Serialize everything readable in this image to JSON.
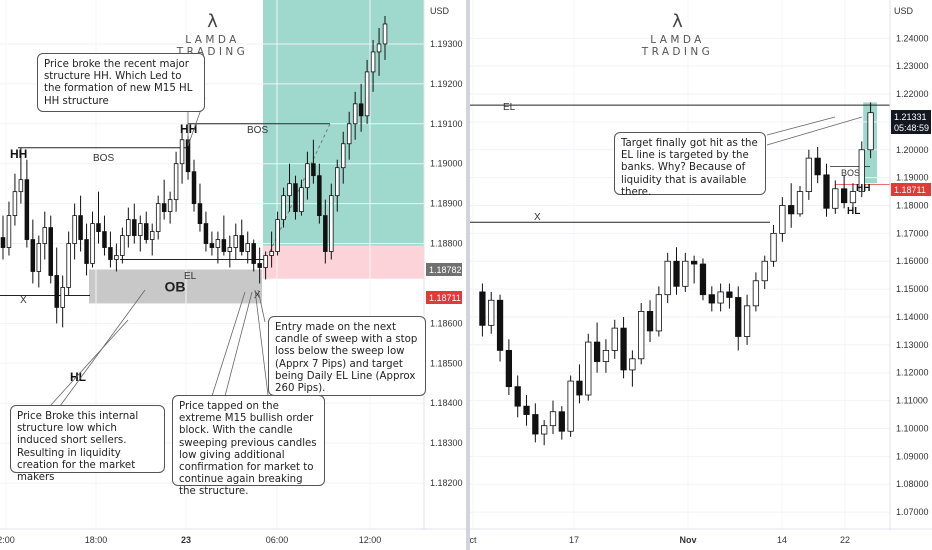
{
  "left_panel": {
    "brand": {
      "symbol": "λ",
      "name": "LAMDA TRADING"
    },
    "currency": "USD",
    "price_ticks": [
      "1.19300",
      "1.19200",
      "1.19100",
      "1.19000",
      "1.18900",
      "1.18800",
      "1.18600",
      "1.18500",
      "1.18400",
      "1.18300",
      "1.18200"
    ],
    "time_ticks": [
      "2:00",
      "18:00",
      "23",
      "06:00",
      "12:00"
    ],
    "current_price_badge": "1.18782",
    "stop_price_badge": "1.18711",
    "labels": {
      "hh_left": "HH",
      "hh_mid": "HH",
      "bos_left": "BOS",
      "bos_mid": "BOS",
      "el": "EL",
      "ob": "OB",
      "hl": "HL",
      "x_left": "X",
      "x_sweep": "X"
    },
    "notes": {
      "structure_break": "Price broke the recent major structure HH. Which Led to the formation of new M15 HL HH structure",
      "entry": "Entry made on the next candle of sweep with a stop loss below the sweep low (Apprx 7 Pips) and target being Daily EL Line (Approx 260 Pips).",
      "internal_low": "Price Broke this internal structure low which induced short sellers. Resulting in liquidity creation for the market makers",
      "order_block": "Price tapped on the extreme M15 bullish order block. With the candle sweeping previous candles low giving additional confirmation for market to continue again breaking the structure."
    },
    "colors": {
      "target_zone": "#9fd8cc",
      "stop_zone": "#fbd3d9",
      "order_block": "#c8c8c8",
      "stop_badge": "#e53935",
      "price_badge": "#707070"
    }
  },
  "right_panel": {
    "brand": {
      "symbol": "λ",
      "name": "LAMDA TRADING"
    },
    "currency": "USD",
    "price_ticks": [
      "1.24000",
      "1.23000",
      "1.22000",
      "1.21000",
      "1.20000",
      "1.19000",
      "1.18000",
      "1.17000",
      "1.16000",
      "1.15000",
      "1.14000",
      "1.13000",
      "1.12000",
      "1.11000",
      "1.10000",
      "1.09000",
      "1.08000",
      "1.07000"
    ],
    "time_ticks": [
      "ct",
      "17",
      "Nov",
      "14",
      "22"
    ],
    "current_price_badge": "1.21331",
    "countdown": "05:48:59",
    "stop_price_badge": "1.18711",
    "labels": {
      "el": "EL",
      "x": "X",
      "bos": "BOS",
      "hh": "HH",
      "hl": "HL"
    },
    "notes": {
      "target": "Target finally got hit as the EL line is targeted by the banks. Why? Because of liquidity that is available there."
    },
    "colors": {
      "current_badge": "#131722",
      "stop_badge": "#e53935",
      "target_zone": "#9fd8cc"
    }
  },
  "chart_data": [
    {
      "type": "candlestick",
      "timeframe_implied": "M15",
      "title": "",
      "ylabel": "USD",
      "ylim": [
        1.1812,
        1.1937
      ],
      "x_ticks": [
        "2:00",
        "18:00",
        "23",
        "06:00",
        "12:00"
      ],
      "candles_ohlc": [
        [
          1.18815,
          1.1887,
          1.1876,
          1.1879
        ],
        [
          1.1879,
          1.18905,
          1.1877,
          1.1887
        ],
        [
          1.1887,
          1.18975,
          1.18845,
          1.1893
        ],
        [
          1.1893,
          1.1904,
          1.189,
          1.1896
        ],
        [
          1.1896,
          1.1901,
          1.1879,
          1.1881
        ],
        [
          1.1881,
          1.1886,
          1.187,
          1.1873
        ],
        [
          1.1873,
          1.1882,
          1.1869,
          1.188
        ],
        [
          1.188,
          1.1888,
          1.1876,
          1.1884
        ],
        [
          1.1884,
          1.1887,
          1.187,
          1.1872
        ],
        [
          1.1872,
          1.1879,
          1.186,
          1.1864
        ],
        [
          1.1864,
          1.1872,
          1.1859,
          1.1869
        ],
        [
          1.1869,
          1.1883,
          1.1867,
          1.188
        ],
        [
          1.188,
          1.189,
          1.1876,
          1.1887
        ],
        [
          1.1887,
          1.1892,
          1.1878,
          1.1881
        ],
        [
          1.1881,
          1.1885,
          1.1872,
          1.1875
        ],
        [
          1.1875,
          1.1888,
          1.1874,
          1.1885
        ],
        [
          1.1885,
          1.1893,
          1.188,
          1.1883
        ],
        [
          1.1883,
          1.1887,
          1.1877,
          1.1879
        ],
        [
          1.1879,
          1.1883,
          1.1874,
          1.1876
        ],
        [
          1.1876,
          1.188,
          1.1873,
          1.1877
        ],
        [
          1.1877,
          1.1884,
          1.1875,
          1.1882
        ],
        [
          1.1882,
          1.1889,
          1.1879,
          1.1886
        ],
        [
          1.1886,
          1.189,
          1.188,
          1.1882
        ],
        [
          1.1882,
          1.1887,
          1.1878,
          1.1885
        ],
        [
          1.1885,
          1.1888,
          1.188,
          1.1881
        ],
        [
          1.1881,
          1.1885,
          1.1877,
          1.1883
        ],
        [
          1.1883,
          1.1892,
          1.1881,
          1.189
        ],
        [
          1.189,
          1.1896,
          1.1886,
          1.1888
        ],
        [
          1.1888,
          1.1893,
          1.1885,
          1.1891
        ],
        [
          1.1891,
          1.1903,
          1.1888,
          1.19
        ],
        [
          1.19,
          1.1909,
          1.1895,
          1.1906
        ],
        [
          1.1906,
          1.1907,
          1.1896,
          1.1898
        ],
        [
          1.1898,
          1.1901,
          1.1888,
          1.189
        ],
        [
          1.189,
          1.1895,
          1.1883,
          1.1885
        ],
        [
          1.1885,
          1.1888,
          1.1878,
          1.188
        ],
        [
          1.188,
          1.1883,
          1.1877,
          1.1879
        ],
        [
          1.1879,
          1.1883,
          1.1875,
          1.1881
        ],
        [
          1.1881,
          1.1887,
          1.1877,
          1.1878
        ],
        [
          1.1878,
          1.1882,
          1.1874,
          1.1879
        ],
        [
          1.1879,
          1.1885,
          1.1876,
          1.1882
        ],
        [
          1.1882,
          1.1886,
          1.1877,
          1.1878
        ],
        [
          1.1878,
          1.1883,
          1.1875,
          1.188
        ],
        [
          1.188,
          1.1881,
          1.1873,
          1.1875
        ],
        [
          1.1875,
          1.1879,
          1.187,
          1.1874
        ],
        [
          1.1874,
          1.1878,
          1.1871,
          1.1877
        ],
        [
          1.1877,
          1.1883,
          1.1874,
          1.1878
        ],
        [
          1.1878,
          1.1888,
          1.1877,
          1.1886
        ],
        [
          1.1886,
          1.1894,
          1.1884,
          1.1892
        ],
        [
          1.1892,
          1.19,
          1.1888,
          1.1895
        ],
        [
          1.1895,
          1.1897,
          1.1886,
          1.1888
        ],
        [
          1.1888,
          1.1896,
          1.1887,
          1.1894
        ],
        [
          1.1894,
          1.1903,
          1.1891,
          1.19
        ],
        [
          1.19,
          1.1906,
          1.1895,
          1.1897
        ],
        [
          1.1897,
          1.19,
          1.1885,
          1.1887
        ],
        [
          1.1887,
          1.1891,
          1.1875,
          1.1878
        ],
        [
          1.1878,
          1.1895,
          1.1876,
          1.1892
        ],
        [
          1.1892,
          1.1901,
          1.1888,
          1.1899
        ],
        [
          1.1899,
          1.1908,
          1.1895,
          1.1905
        ],
        [
          1.1905,
          1.1913,
          1.1901,
          1.191
        ],
        [
          1.191,
          1.1918,
          1.1906,
          1.1915
        ],
        [
          1.1915,
          1.192,
          1.1908,
          1.1912
        ],
        [
          1.1912,
          1.1926,
          1.191,
          1.1923
        ],
        [
          1.1923,
          1.1931,
          1.1918,
          1.1928
        ],
        [
          1.1928,
          1.1934,
          1.1922,
          1.193
        ],
        [
          1.193,
          1.1937,
          1.1926,
          1.1935
        ]
      ]
    },
    {
      "type": "candlestick",
      "timeframe_implied": "Daily",
      "title": "",
      "ylabel": "USD",
      "ylim": [
        1.065,
        1.248
      ],
      "x_ticks": [
        "ct",
        "17",
        "Nov",
        "14",
        "22"
      ],
      "candles_ohlc": [
        [
          1.149,
          1.152,
          1.133,
          1.137
        ],
        [
          1.137,
          1.149,
          1.134,
          1.146
        ],
        [
          1.146,
          1.148,
          1.124,
          1.128
        ],
        [
          1.128,
          1.132,
          1.112,
          1.115
        ],
        [
          1.115,
          1.119,
          1.104,
          1.108
        ],
        [
          1.108,
          1.112,
          1.101,
          1.105
        ],
        [
          1.105,
          1.109,
          1.095,
          1.098
        ],
        [
          1.098,
          1.103,
          1.094,
          1.101
        ],
        [
          1.101,
          1.11,
          1.098,
          1.106
        ],
        [
          1.106,
          1.108,
          1.096,
          1.099
        ],
        [
          1.099,
          1.119,
          1.097,
          1.117
        ],
        [
          1.117,
          1.123,
          1.109,
          1.112
        ],
        [
          1.112,
          1.134,
          1.11,
          1.131
        ],
        [
          1.131,
          1.138,
          1.12,
          1.124
        ],
        [
          1.124,
          1.132,
          1.12,
          1.128
        ],
        [
          1.128,
          1.139,
          1.125,
          1.136
        ],
        [
          1.136,
          1.14,
          1.118,
          1.121
        ],
        [
          1.121,
          1.128,
          1.115,
          1.125
        ],
        [
          1.125,
          1.145,
          1.123,
          1.142
        ],
        [
          1.142,
          1.146,
          1.131,
          1.135
        ],
        [
          1.135,
          1.151,
          1.133,
          1.148
        ],
        [
          1.148,
          1.163,
          1.145,
          1.16
        ],
        [
          1.16,
          1.165,
          1.148,
          1.151
        ],
        [
          1.151,
          1.163,
          1.149,
          1.16
        ],
        [
          1.16,
          1.162,
          1.152,
          1.159
        ],
        [
          1.159,
          1.161,
          1.146,
          1.148
        ],
        [
          1.148,
          1.151,
          1.142,
          1.145
        ],
        [
          1.145,
          1.152,
          1.142,
          1.149
        ],
        [
          1.149,
          1.152,
          1.143,
          1.147
        ],
        [
          1.147,
          1.151,
          1.128,
          1.133
        ],
        [
          1.133,
          1.148,
          1.13,
          1.144
        ],
        [
          1.144,
          1.156,
          1.142,
          1.153
        ],
        [
          1.153,
          1.162,
          1.15,
          1.16
        ],
        [
          1.16,
          1.173,
          1.158,
          1.17
        ],
        [
          1.17,
          1.183,
          1.167,
          1.18
        ],
        [
          1.18,
          1.188,
          1.172,
          1.177
        ],
        [
          1.177,
          1.187,
          1.176,
          1.185
        ],
        [
          1.185,
          1.2,
          1.182,
          1.197
        ],
        [
          1.197,
          1.201,
          1.188,
          1.191
        ],
        [
          1.191,
          1.195,
          1.176,
          1.179
        ],
        [
          1.179,
          1.189,
          1.177,
          1.186
        ],
        [
          1.186,
          1.191,
          1.179,
          1.181
        ],
        [
          1.181,
          1.188,
          1.177,
          1.185
        ],
        [
          1.185,
          1.203,
          1.183,
          1.2
        ],
        [
          1.2,
          1.217,
          1.197,
          1.2133
        ]
      ]
    }
  ]
}
